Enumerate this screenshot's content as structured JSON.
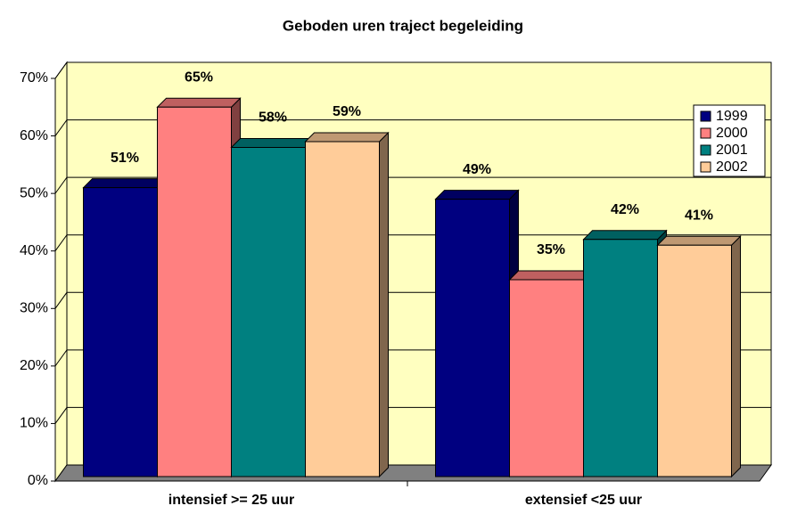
{
  "chart_data": {
    "type": "bar3d",
    "title": "Geboden uren traject begeleiding",
    "categories": [
      "intensief >= 25 uur",
      "extensief <25 uur"
    ],
    "series": [
      {
        "name": "1999",
        "color": "#000080",
        "values": [
          51,
          49
        ],
        "value_labels": [
          "51%",
          "49%"
        ]
      },
      {
        "name": "2000",
        "color": "#ff8080",
        "values": [
          65,
          35
        ],
        "value_labels": [
          "65%",
          "35%"
        ]
      },
      {
        "name": "2001",
        "color": "#008080",
        "values": [
          58,
          42
        ],
        "value_labels": [
          "58%",
          "42%"
        ]
      },
      {
        "name": "2002",
        "color": "#ffcc99",
        "values": [
          59,
          41
        ],
        "value_labels": [
          "59%",
          "41%"
        ]
      }
    ],
    "ylim": [
      0,
      70
    ],
    "yticks": [
      {
        "value": 0,
        "label": "0%"
      },
      {
        "value": 10,
        "label": "10%"
      },
      {
        "value": 20,
        "label": "20%"
      },
      {
        "value": 30,
        "label": "30%"
      },
      {
        "value": 40,
        "label": "40%"
      },
      {
        "value": 50,
        "label": "50%"
      },
      {
        "value": 60,
        "label": "60%"
      },
      {
        "value": 70,
        "label": "70%"
      }
    ],
    "grid": true,
    "legend": "top-right"
  }
}
